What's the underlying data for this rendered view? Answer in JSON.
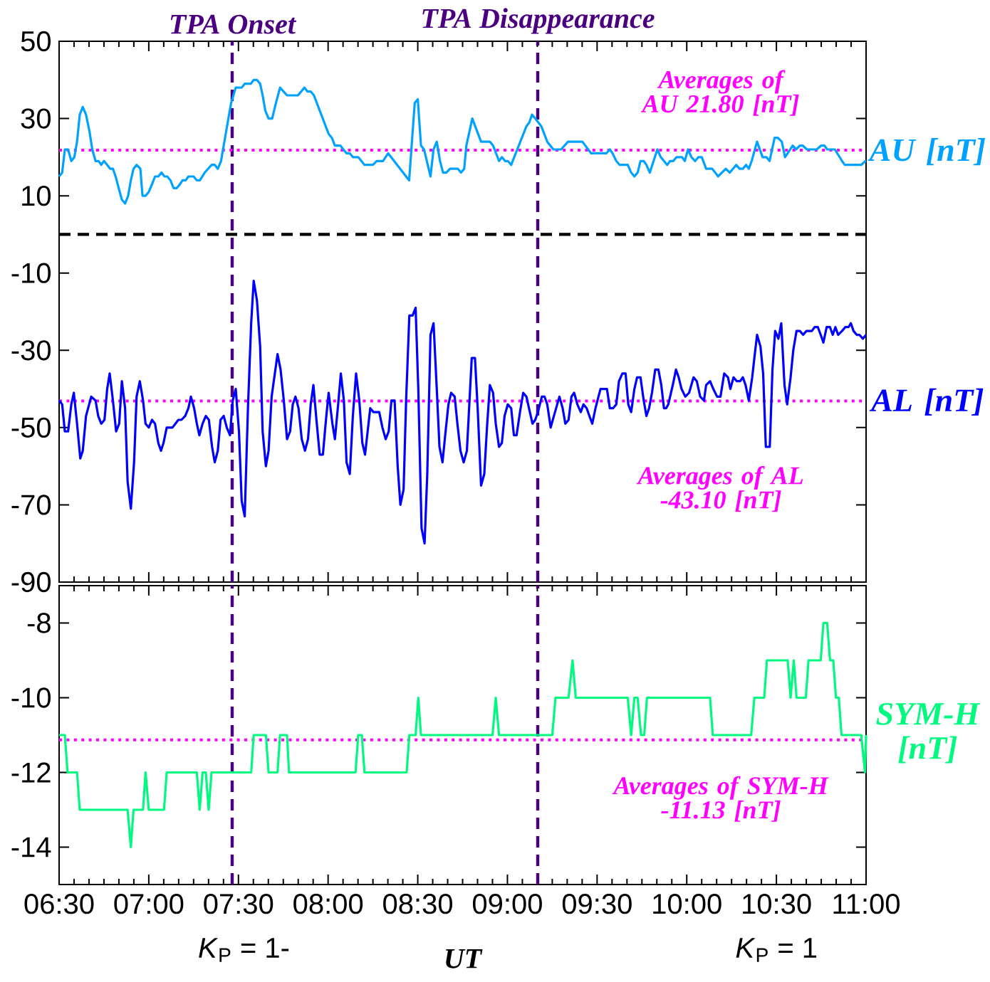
{
  "chart_data": [
    {
      "type": "line",
      "xlim": [
        6.5,
        11
      ],
      "ylim": [
        -90,
        50
      ],
      "tick_labels": "y",
      "xticks": [
        {
          "value": 6.5,
          "label": null
        },
        {
          "value": 7,
          "label": null
        },
        {
          "value": 7.5,
          "label": null
        },
        {
          "value": 8,
          "label": null
        },
        {
          "value": 8.5,
          "label": null
        },
        {
          "value": 9,
          "label": null
        },
        {
          "value": 9.5,
          "label": null
        },
        {
          "value": 10,
          "label": null
        },
        {
          "value": 10.5,
          "label": null
        },
        {
          "value": 11,
          "label": null
        }
      ],
      "yticks": [
        -90,
        -70,
        -50,
        -30,
        -10,
        10,
        30,
        50
      ],
      "series": [
        {
          "name": "AU [nT]",
          "color": "#00a2ff",
          "x": [
            6.5,
            6.517,
            6.532,
            6.55,
            6.568,
            6.585,
            6.6,
            6.615,
            6.632,
            6.65,
            6.668,
            6.685,
            6.703,
            6.72,
            6.735,
            6.75,
            6.768,
            6.785,
            6.8,
            6.815,
            6.832,
            6.85,
            6.868,
            6.885,
            6.9,
            6.915,
            6.932,
            6.953,
            6.965,
            6.982,
            7.0,
            7.018,
            7.035,
            7.053,
            7.071,
            7.088,
            7.103,
            7.121,
            7.138,
            7.156,
            7.174,
            7.188,
            7.206,
            7.221,
            7.25,
            7.268,
            7.285,
            7.312,
            7.35,
            7.368,
            7.385,
            7.403,
            7.429,
            7.459,
            7.485,
            7.518,
            7.535,
            7.569,
            7.585,
            7.603,
            7.621,
            7.635,
            7.65,
            7.668,
            7.688,
            7.709,
            7.732,
            7.771,
            7.832,
            7.868,
            7.885,
            7.903,
            7.921,
            7.962,
            8.003,
            8.021,
            8.038,
            8.068,
            8.103,
            8.121,
            8.138,
            8.168,
            8.203,
            8.25,
            8.271,
            8.306,
            8.335,
            8.452,
            8.483,
            8.5,
            8.518,
            8.535,
            8.571,
            8.588,
            8.606,
            8.624,
            8.641,
            8.659,
            8.68,
            8.724,
            8.741,
            8.759,
            8.771,
            8.804,
            8.853,
            8.902,
            8.92,
            8.953,
            8.969,
            8.987,
            9.002,
            9.021,
            9.106,
            9.122,
            9.137,
            9.155,
            9.189,
            9.222,
            9.256,
            9.299,
            9.338,
            9.418,
            9.467,
            9.552,
            9.571,
            9.586,
            9.607,
            9.626,
            9.671,
            9.69,
            9.708,
            9.726,
            9.742,
            9.76,
            9.775,
            9.794,
            9.836,
            9.855,
            9.891,
            9.907,
            9.925,
            9.943,
            9.974,
            9.989,
            10.007,
            10.026,
            10.047,
            10.065,
            10.084,
            10.108,
            10.142,
            10.175,
            10.218,
            10.24,
            10.276,
            10.294,
            10.313,
            10.331,
            10.346,
            10.362,
            10.392,
            10.423,
            10.444,
            10.462,
            10.49,
            10.508,
            10.53,
            10.548,
            10.591,
            10.609,
            10.631,
            10.646,
            10.67,
            10.725,
            10.75,
            10.768,
            10.783,
            10.826,
            10.866,
            10.881,
            10.973,
            10.997,
            11.0
          ],
          "values": [
            15,
            16,
            22,
            22,
            19,
            20,
            24,
            31,
            33,
            31,
            27,
            22,
            19,
            19,
            18,
            19,
            18,
            17,
            17,
            15,
            12,
            9,
            8,
            10,
            14,
            17,
            18,
            17,
            10,
            10,
            11,
            13,
            15,
            15,
            16,
            15,
            15,
            14,
            12,
            12,
            13,
            14,
            14,
            15,
            15,
            14,
            14,
            16,
            18,
            18,
            17,
            19,
            26,
            34,
            38,
            38,
            39,
            39,
            40,
            40,
            39,
            36,
            32,
            30,
            30,
            34,
            38,
            36,
            36,
            38,
            37,
            37,
            36,
            31,
            26,
            25,
            23,
            23,
            21,
            21,
            20,
            20,
            18,
            18,
            19,
            19,
            21,
            14,
            34,
            35,
            23,
            22,
            15,
            22,
            24,
            19,
            16,
            16,
            17,
            17,
            16,
            17,
            23,
            30,
            24,
            24,
            23,
            19,
            20,
            19,
            19,
            18,
            28,
            29,
            31,
            30,
            28,
            24,
            22,
            22,
            24,
            24,
            21,
            21,
            22,
            21,
            19,
            18,
            18,
            16,
            15,
            16,
            19,
            19,
            18,
            16,
            22,
            20,
            18,
            19,
            19,
            20,
            20,
            19,
            22,
            20,
            19,
            20,
            20,
            17,
            17,
            15,
            17,
            16,
            18,
            17,
            17,
            18,
            17,
            19,
            24,
            20,
            20,
            19,
            25,
            25,
            24,
            20,
            23,
            22,
            23,
            23,
            22,
            22,
            23,
            23,
            22,
            22,
            19,
            18,
            18,
            19,
            19
          ]
        },
        {
          "name": "AL [nT]",
          "color": "#0000ff",
          "x": [
            6.5,
            6.517,
            6.532,
            6.55,
            6.568,
            6.582,
            6.6,
            6.618,
            6.632,
            6.65,
            6.679,
            6.703,
            6.718,
            6.735,
            6.753,
            6.768,
            6.782,
            6.8,
            6.818,
            6.835,
            6.85,
            6.868,
            6.882,
            6.9,
            6.918,
            6.932,
            6.95,
            6.968,
            6.982,
            7.0,
            7.018,
            7.035,
            7.053,
            7.068,
            7.082,
            7.1,
            7.132,
            7.165,
            7.182,
            7.203,
            7.221,
            7.235,
            7.253,
            7.268,
            7.282,
            7.3,
            7.318,
            7.335,
            7.353,
            7.368,
            7.385,
            7.4,
            7.418,
            7.435,
            7.453,
            7.468,
            7.485,
            7.503,
            7.518,
            7.535,
            7.553,
            7.571,
            7.585,
            7.603,
            7.621,
            7.635,
            7.653,
            7.668,
            7.685,
            7.718,
            7.735,
            7.753,
            7.771,
            7.788,
            7.803,
            7.818,
            7.835,
            7.853,
            7.871,
            7.888,
            7.903,
            7.918,
            7.935,
            7.953,
            7.971,
            7.988,
            8.003,
            8.024,
            8.038,
            8.056,
            8.071,
            8.088,
            8.103,
            8.121,
            8.138,
            8.156,
            8.174,
            8.191,
            8.206,
            8.218,
            8.235,
            8.253,
            8.285,
            8.303,
            8.321,
            8.338,
            8.353,
            8.371,
            8.388,
            8.403,
            8.421,
            8.435,
            8.453,
            8.471,
            8.488,
            8.503,
            8.521,
            8.538,
            8.553,
            8.571,
            8.588,
            8.606,
            8.621,
            8.638,
            8.653,
            8.671,
            8.686,
            8.706,
            8.721,
            8.738,
            8.756,
            8.774,
            8.801,
            8.819,
            8.834,
            8.853,
            8.871,
            8.886,
            8.902,
            8.92,
            8.935,
            8.953,
            8.969,
            8.984,
            9.002,
            9.021,
            9.036,
            9.051,
            9.07,
            9.088,
            9.106,
            9.125,
            9.14,
            9.155,
            9.17,
            9.192,
            9.207,
            9.222,
            9.241,
            9.259,
            9.29,
            9.308,
            9.323,
            9.341,
            9.357,
            9.372,
            9.39,
            9.409,
            9.424,
            9.442,
            9.457,
            9.473,
            9.491,
            9.519,
            9.555,
            9.571,
            9.589,
            9.607,
            9.622,
            9.641,
            9.659,
            9.674,
            9.69,
            9.708,
            9.723,
            9.742,
            9.76,
            9.775,
            9.79,
            9.806,
            9.824,
            9.842,
            9.858,
            9.873,
            9.885,
            9.897,
            9.922,
            9.94,
            9.955,
            9.971,
            9.992,
            10.013,
            10.038,
            10.056,
            10.075,
            10.096,
            10.108,
            10.13,
            10.148,
            10.169,
            10.188,
            10.209,
            10.23,
            10.243,
            10.261,
            10.279,
            10.298,
            10.313,
            10.328,
            10.346,
            10.365,
            10.377,
            10.392,
            10.411,
            10.426,
            10.441,
            10.463,
            10.478,
            10.493,
            10.511,
            10.527,
            10.545,
            10.56,
            10.579,
            10.594,
            10.612,
            10.631,
            10.649,
            10.667,
            10.698,
            10.713,
            10.731,
            10.747,
            10.762,
            10.78,
            10.799,
            10.814,
            10.829,
            10.844,
            10.866,
            10.884,
            10.902,
            10.915,
            10.93,
            10.948,
            10.963,
            10.982,
            11.0
          ],
          "values": [
            -43,
            -44,
            -51,
            -51,
            -44,
            -41,
            -49,
            -58,
            -56,
            -47,
            -42,
            -43,
            -47,
            -49,
            -48,
            -40,
            -36,
            -43,
            -51,
            -49,
            -38,
            -45,
            -64,
            -71,
            -59,
            -42,
            -38,
            -43,
            -49,
            -50,
            -48,
            -49,
            -54,
            -56,
            -54,
            -50,
            -50,
            -48,
            -48,
            -47,
            -45,
            -42,
            -45,
            -49,
            -52,
            -49,
            -47,
            -48,
            -55,
            -59,
            -56,
            -48,
            -47,
            -50,
            -52,
            -43,
            -40,
            -51,
            -69,
            -73,
            -45,
            -23,
            -12,
            -17,
            -29,
            -51,
            -60,
            -56,
            -42,
            -31,
            -35,
            -43,
            -53,
            -51,
            -44,
            -42,
            -45,
            -53,
            -56,
            -53,
            -44,
            -39,
            -48,
            -57,
            -57,
            -48,
            -41,
            -49,
            -53,
            -44,
            -36,
            -43,
            -59,
            -62,
            -47,
            -36,
            -43,
            -54,
            -57,
            -52,
            -45,
            -46,
            -46,
            -50,
            -53,
            -51,
            -43,
            -43,
            -60,
            -70,
            -66,
            -43,
            -21,
            -21,
            -19,
            -40,
            -76,
            -80,
            -62,
            -26,
            -23,
            -40,
            -55,
            -59,
            -52,
            -44,
            -41,
            -42,
            -49,
            -56,
            -59,
            -56,
            -32,
            -32,
            -45,
            -65,
            -62,
            -50,
            -39,
            -41,
            -49,
            -55,
            -54,
            -47,
            -44,
            -45,
            -52,
            -52,
            -46,
            -41,
            -42,
            -46,
            -49,
            -48,
            -46,
            -42,
            -42,
            -44,
            -50,
            -47,
            -42,
            -45,
            -49,
            -48,
            -42,
            -41,
            -44,
            -46,
            -44,
            -45,
            -47,
            -49,
            -45,
            -40,
            -40,
            -45,
            -45,
            -44,
            -38,
            -36,
            -36,
            -44,
            -46,
            -40,
            -37,
            -37,
            -43,
            -47,
            -45,
            -41,
            -35,
            -35,
            -39,
            -45,
            -45,
            -44,
            -39,
            -35,
            -37,
            -40,
            -42,
            -41,
            -37,
            -38,
            -42,
            -43,
            -39,
            -38,
            -40,
            -42,
            -42,
            -36,
            -37,
            -40,
            -37,
            -38,
            -38,
            -37,
            -39,
            -43,
            -37,
            -32,
            -26,
            -29,
            -36,
            -55,
            -55,
            -35,
            -25,
            -27,
            -23,
            -39,
            -44,
            -37,
            -30,
            -25,
            -25,
            -26,
            -25,
            -25,
            -24,
            -24,
            -26,
            -28,
            -24,
            -24,
            -26,
            -24,
            -26,
            -25,
            -24,
            -24,
            -23,
            -25,
            -26,
            -26,
            -27,
            -26
          ]
        }
      ],
      "ref_lines": [
        {
          "axis": "y",
          "value": 0,
          "color": "#000000",
          "line_style": "dashed"
        },
        {
          "axis": "x",
          "value": 7.465,
          "label": "TPA Onset",
          "color": "#4b0082",
          "line_style": "dashed"
        },
        {
          "axis": "x",
          "value": 9.169,
          "label": "TPA Disappearance",
          "color": "#4b0082",
          "line_style": "dashed"
        },
        {
          "axis": "y",
          "value": 21.8,
          "label": "Averages of AU 21.80 [nT]",
          "color": "#ff00ff",
          "line_style": "dotted"
        },
        {
          "axis": "y",
          "value": -43.1,
          "label": "Averages of AL -43.10 [nT]",
          "color": "#ff00ff",
          "line_style": "dotted"
        }
      ]
    },
    {
      "type": "line",
      "xlim": [
        6.5,
        11
      ],
      "ylim": [
        -15,
        -7
      ],
      "xlabel": "UT",
      "xticks": [
        {
          "value": 6.5,
          "label": "06:30"
        },
        {
          "value": 7,
          "label": "07:00"
        },
        {
          "value": 7.5,
          "label": "07:30"
        },
        {
          "value": 8,
          "label": "08:00"
        },
        {
          "value": 8.5,
          "label": "08:30"
        },
        {
          "value": 9,
          "label": "09:00"
        },
        {
          "value": 9.5,
          "label": "09:30"
        },
        {
          "value": 10,
          "label": "10:00"
        },
        {
          "value": 10.5,
          "label": "10:30"
        },
        {
          "value": 11,
          "label": "11:00"
        }
      ],
      "yticks": [
        -14,
        -12,
        -10,
        -8
      ],
      "series": [
        {
          "name": "SYM-H [nT]",
          "color": "#00fa80",
          "x": [
            6.5,
            6.532,
            6.547,
            6.6,
            6.615,
            6.882,
            6.9,
            6.915,
            6.968,
            6.982,
            7.0,
            7.085,
            7.1,
            7.268,
            7.284,
            7.3,
            7.318,
            7.334,
            7.35,
            7.571,
            7.585,
            7.653,
            7.668,
            7.718,
            7.732,
            7.771,
            7.782,
            8.153,
            8.168,
            8.188,
            8.203,
            8.438,
            8.453,
            8.488,
            8.503,
            8.518,
            8.794,
            8.917,
            8.935,
            8.953,
            9.25,
            9.268,
            9.341,
            9.363,
            9.381,
            9.671,
            9.69,
            9.708,
            9.726,
            9.745,
            9.763,
            9.778,
            10.13,
            10.145,
            10.359,
            10.377,
            10.432,
            10.447,
            10.563,
            10.579,
            10.597,
            10.612,
            10.664,
            10.679,
            10.747,
            10.762,
            10.783,
            10.799,
            10.817,
            10.832,
            10.848,
            10.863,
            10.973,
            10.994,
            11.0
          ],
          "values": [
            -11,
            -11,
            -12,
            -12,
            -13,
            -13,
            -14,
            -13,
            -13,
            -12,
            -13,
            -13,
            -12,
            -12,
            -13,
            -12,
            -12,
            -13,
            -12,
            -12,
            -11,
            -11,
            -12,
            -12,
            -11,
            -11,
            -12,
            -12,
            -11,
            -11,
            -12,
            -12,
            -11,
            -11,
            -10,
            -11,
            -11,
            -11,
            -10,
            -11,
            -11,
            -10,
            -10,
            -9,
            -10,
            -10,
            -11,
            -10,
            -10,
            -11,
            -11,
            -10,
            -10,
            -11,
            -11,
            -10,
            -10,
            -9,
            -9,
            -10,
            -9,
            -10,
            -10,
            -9,
            -9,
            -8,
            -8,
            -9,
            -9,
            -10,
            -10,
            -11,
            -11,
            -12,
            -11
          ]
        }
      ],
      "ref_lines": [
        {
          "axis": "x",
          "value": 7.465,
          "color": "#4b0082",
          "line_style": "dashed"
        },
        {
          "axis": "x",
          "value": 9.169,
          "color": "#4b0082",
          "line_style": "dashed"
        },
        {
          "axis": "y",
          "value": -11.13,
          "label": "Averages of SYM-H -11.13 [nT]",
          "color": "#ff00ff",
          "line_style": "dotted"
        }
      ],
      "annotations": [
        "*K*$_{P}$ = 1-",
        "*K*$_{P}$ = 1"
      ]
    }
  ]
}
